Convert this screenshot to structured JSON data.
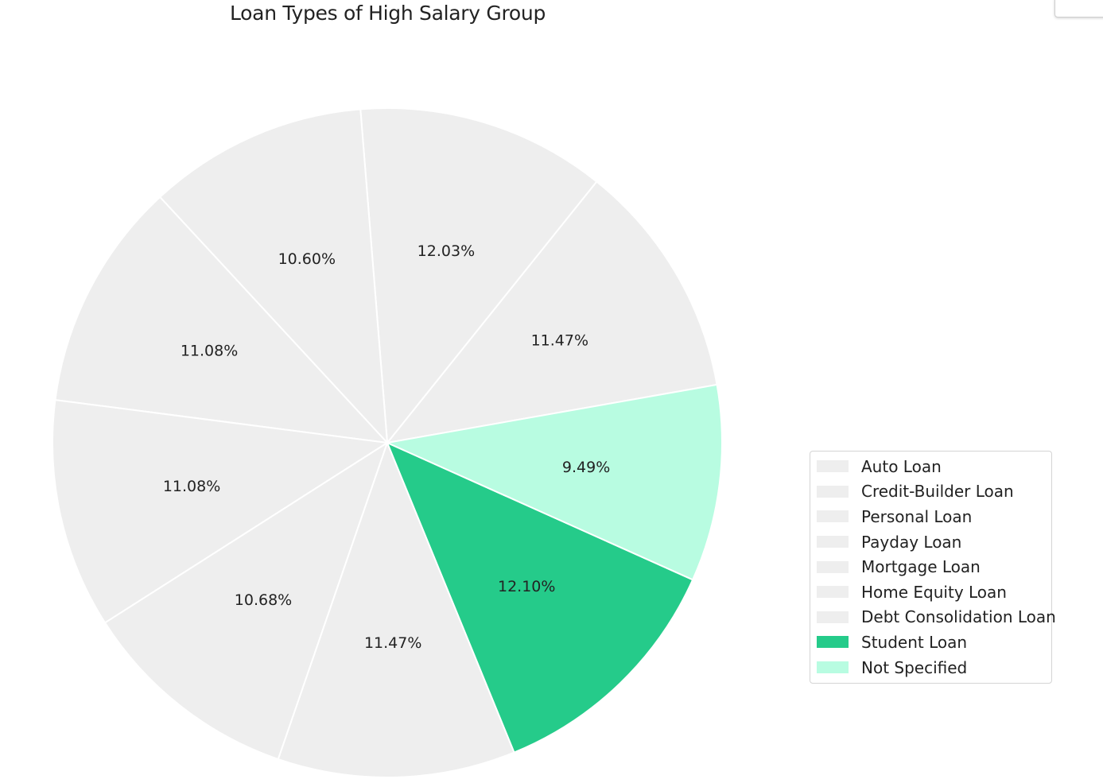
{
  "chart_data": {
    "type": "pie",
    "title": "Loan Types of High Salary Group",
    "categories": [
      "Auto Loan",
      "Credit-Builder Loan",
      "Personal Loan",
      "Payday Loan",
      "Mortgage Loan",
      "Home Equity Loan",
      "Debt Consolidation Loan",
      "Student Loan",
      "Not Specified"
    ],
    "values": [
      11.47,
      12.03,
      10.6,
      11.08,
      11.08,
      10.68,
      11.47,
      12.1,
      9.49
    ],
    "labels": [
      "11.47%",
      "12.03%",
      "10.60%",
      "11.08%",
      "11.08%",
      "10.68%",
      "11.47%",
      "12.10%",
      "9.49%"
    ],
    "colors": [
      "#eeeeee",
      "#eeeeee",
      "#eeeeee",
      "#eeeeee",
      "#eeeeee",
      "#eeeeee",
      "#eeeeee",
      "#25cb8a",
      "#b8fce1"
    ],
    "legend_position": "lower-right",
    "start_angle_deg": 10,
    "direction": "counterclockwise"
  }
}
